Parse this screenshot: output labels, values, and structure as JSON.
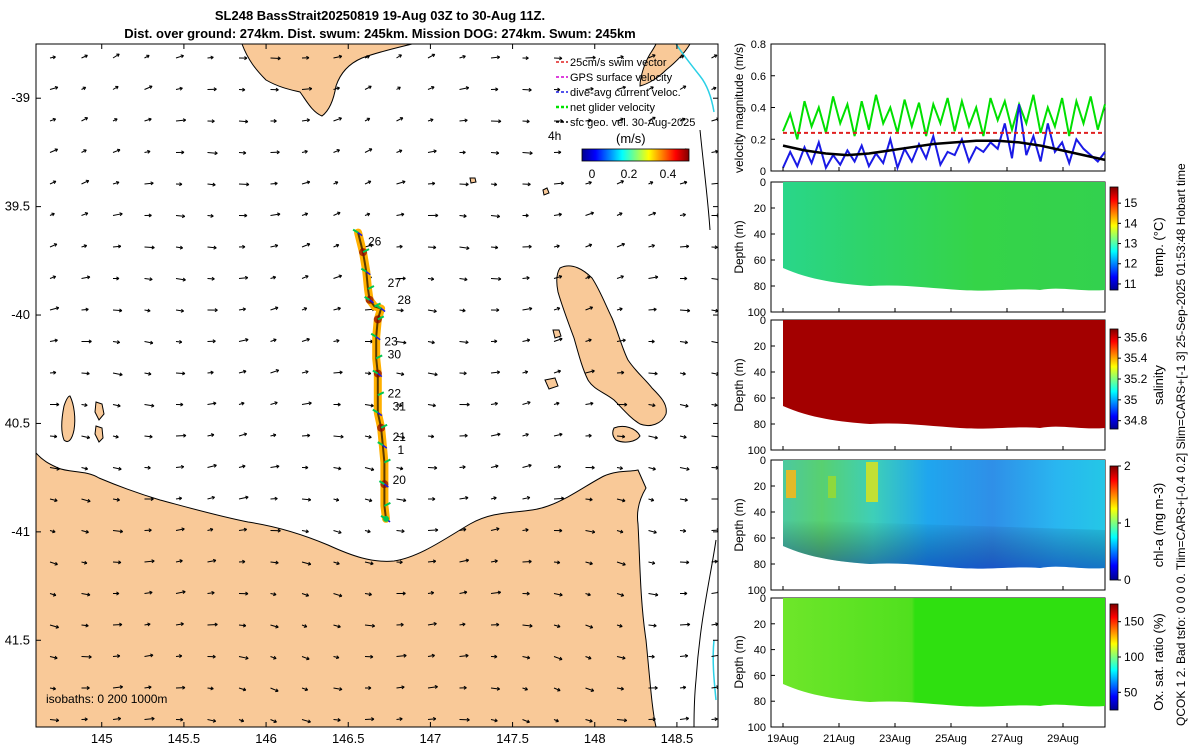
{
  "title_line1": "SL248 BassStrait20250819 19-Aug 03Z to 30-Aug 11Z.",
  "title_line2": "Dist. over ground: 274km. Dist. swum: 245km. Mission DOG: 274km. Swum: 245km",
  "side_label": "QCOK 1  2. Bad tsfo: 0  0  0  0. Tlim=CARS+[-0.4 0.2] Slim=CARS+[-1 3] 25-Sep-2025 01:53:48 Hobart time",
  "colors": {
    "land": "#f9c998",
    "path": "#ffb000",
    "track": "#5a3a00",
    "swum": "#00c853",
    "dac": "#1a1ae6",
    "gps": "#d000d0",
    "coast": "#000000",
    "cyan": "#2bd0e6"
  },
  "chart_data": [
    {
      "type": "map",
      "xlim": [
        144.6,
        148.75
      ],
      "ylim": [
        -41.9,
        -38.75
      ],
      "xticks": [
        145,
        145.5,
        146,
        146.5,
        147,
        147.5,
        148,
        148.5
      ],
      "xtick_labels": [
        "145",
        "145.5",
        "146",
        "146.5",
        "147",
        "147.5",
        "148",
        "148.5"
      ],
      "yticks": [
        -39,
        -39.5,
        -40,
        -40.5,
        -41,
        -41.5
      ],
      "ytick_labels": [
        "-39",
        "39.5",
        "-40",
        "40.5",
        "-41",
        "41.5"
      ],
      "legend": [
        "25cm/s swim vector",
        "GPS surface velocity",
        "dive-avg current veloc.",
        "net glider velocity",
        "sfc geo. vel. 30-Aug-2025"
      ],
      "legend_timespan": "4h",
      "colorbar": {
        "label": "(m/s)",
        "ticks": [
          "0",
          "0.2",
          "0.4"
        ],
        "range": [
          0,
          0.5
        ]
      },
      "isobaths_label": "isobaths: 0   200  1000m",
      "track": [
        [
          146.56,
          -39.62
        ],
        [
          146.59,
          -39.71
        ],
        [
          146.61,
          -39.8
        ],
        [
          146.62,
          -39.88
        ],
        [
          146.63,
          -39.93
        ],
        [
          146.66,
          -39.96
        ],
        [
          146.7,
          -39.97
        ],
        [
          146.68,
          -40.02
        ],
        [
          146.67,
          -40.1
        ],
        [
          146.67,
          -40.2
        ],
        [
          146.68,
          -40.27
        ],
        [
          146.68,
          -40.37
        ],
        [
          146.68,
          -40.45
        ],
        [
          146.7,
          -40.52
        ],
        [
          146.71,
          -40.6
        ],
        [
          146.72,
          -40.68
        ],
        [
          146.72,
          -40.78
        ],
        [
          146.72,
          -40.88
        ],
        [
          146.73,
          -40.94
        ]
      ],
      "day_labels": [
        {
          "text": "26",
          "lon": 146.62,
          "lat": -39.68
        },
        {
          "text": "27",
          "lon": 146.74,
          "lat": -39.87
        },
        {
          "text": "28",
          "lon": 146.8,
          "lat": -39.95
        },
        {
          "text": "23",
          "lon": 146.72,
          "lat": -40.14
        },
        {
          "text": "30",
          "lon": 146.74,
          "lat": -40.2
        },
        {
          "text": "22",
          "lon": 146.74,
          "lat": -40.38
        },
        {
          "text": "31",
          "lon": 146.77,
          "lat": -40.44
        },
        {
          "text": "21",
          "lon": 146.77,
          "lat": -40.58
        },
        {
          "text": "1",
          "lon": 146.8,
          "lat": -40.64
        },
        {
          "text": "20",
          "lon": 146.77,
          "lat": -40.78
        }
      ]
    },
    {
      "type": "line",
      "ylabel": "velocity magnitude (m/s)",
      "ylim": [
        0,
        0.8
      ],
      "yticks": [
        0,
        0.2,
        0.4,
        0.6,
        0.8
      ],
      "ytick_labels": [
        "0",
        "0.2",
        "0.4",
        "0.6",
        "0.8"
      ],
      "xlim": [
        19,
        30.5
      ],
      "series": [
        {
          "name": "net glider velocity",
          "color": "#00e000",
          "values": [
            0.25,
            0.36,
            0.2,
            0.44,
            0.28,
            0.4,
            0.24,
            0.47,
            0.3,
            0.42,
            0.22,
            0.44,
            0.26,
            0.48,
            0.3,
            0.4,
            0.24,
            0.45,
            0.28,
            0.43,
            0.22,
            0.42,
            0.3,
            0.46,
            0.25,
            0.44,
            0.28,
            0.4,
            0.22,
            0.46,
            0.32,
            0.44,
            0.26,
            0.42,
            0.3,
            0.48,
            0.24,
            0.4,
            0.28,
            0.46,
            0.22,
            0.44,
            0.3,
            0.47,
            0.26,
            0.42
          ]
        },
        {
          "name": "dive-avg current veloc.",
          "color": "#1a1ae6",
          "values": [
            0.02,
            0.12,
            0.03,
            0.15,
            0.05,
            0.18,
            0.02,
            0.1,
            0.04,
            0.13,
            0.06,
            0.16,
            0.03,
            0.11,
            0.05,
            0.2,
            0.02,
            0.14,
            0.06,
            0.17,
            0.08,
            0.22,
            0.04,
            0.12,
            0.1,
            0.2,
            0.06,
            0.15,
            0.12,
            0.18,
            0.14,
            0.3,
            0.08,
            0.42,
            0.1,
            0.22,
            0.06,
            0.3,
            0.12,
            0.18,
            0.05,
            0.2,
            0.14,
            0.1,
            0.06,
            0.12
          ]
        },
        {
          "name": "swim speed",
          "color": "#e02020",
          "dashed": true,
          "values": [
            0.24,
            0.24
          ]
        },
        {
          "name": "sfc geo. vel.",
          "color": "#000000",
          "values": [
            0.16,
            0.13,
            0.11,
            0.1,
            0.11,
            0.13,
            0.15,
            0.17,
            0.18,
            0.19,
            0.19,
            0.18,
            0.16,
            0.13,
            0.1,
            0.07
          ]
        }
      ]
    },
    {
      "type": "heatmap",
      "ylabel": "Depth (m)",
      "ylim": [
        100,
        0
      ],
      "yticks": [
        0,
        20,
        40,
        60,
        80,
        100
      ],
      "cbar_label": "temp. (°C)",
      "cbar_ticks": [
        "11",
        "12",
        "13",
        "14",
        "15"
      ],
      "cbar_range": [
        10.7,
        15.8
      ],
      "field_value_typical": 13.3
    },
    {
      "type": "heatmap",
      "ylabel": "Depth (m)",
      "ylim": [
        100,
        0
      ],
      "yticks": [
        0,
        20,
        40,
        60,
        80,
        100
      ],
      "cbar_label": "salinity",
      "cbar_ticks": [
        "34.8",
        "35",
        "35.2",
        "35.4",
        "35.6"
      ],
      "cbar_range": [
        34.72,
        35.68
      ],
      "field_value_typical": 35.68
    },
    {
      "type": "heatmap",
      "ylabel": "Depth (m)",
      "ylim": [
        100,
        0
      ],
      "yticks": [
        0,
        20,
        40,
        60,
        80,
        100
      ],
      "cbar_label": "chl-a (mg m-3)",
      "cbar_ticks": [
        "0",
        "1",
        "2"
      ],
      "cbar_range": [
        0,
        2
      ],
      "field_value_typical": 0.7
    },
    {
      "type": "heatmap",
      "ylabel": "Depth (m)",
      "ylim": [
        100,
        0
      ],
      "yticks": [
        0,
        20,
        40,
        60,
        80,
        100
      ],
      "cbar_label": "Ox. sat. ratio (%)",
      "cbar_ticks": [
        "50",
        "100",
        "150"
      ],
      "cbar_range": [
        25,
        175
      ],
      "field_value_typical": 100,
      "xtick_labels": [
        "19Aug",
        "21Aug",
        "23Aug",
        "25Aug",
        "27Aug",
        "29Aug"
      ],
      "xticks_day": [
        19,
        21,
        23,
        25,
        27,
        29
      ]
    }
  ]
}
